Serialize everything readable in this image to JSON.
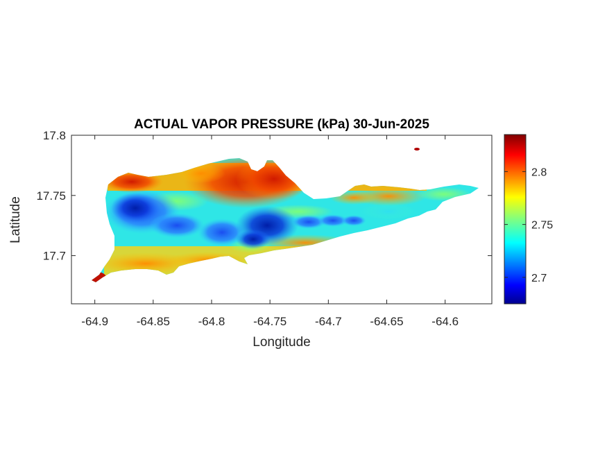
{
  "title": "ACTUAL VAPOR PRESSURE (kPa) 30-Jun-2025",
  "chart_data": {
    "type": "heatmap",
    "title": "ACTUAL VAPOR PRESSURE (kPa) 30-Jun-2025",
    "xlabel": "Longitude",
    "ylabel": "Latitude",
    "xlim": [
      -64.92,
      -64.56
    ],
    "ylim": [
      17.66,
      17.8
    ],
    "x_ticks": [
      "-64.9",
      "-64.85",
      "-64.8",
      "-64.75",
      "-64.7",
      "-64.65",
      "-64.6"
    ],
    "y_ticks": [
      "17.7",
      "17.75",
      "17.8"
    ],
    "x_tick_values": [
      -64.9,
      -64.85,
      -64.8,
      -64.75,
      -64.7,
      -64.65,
      -64.6
    ],
    "y_tick_values": [
      17.7,
      17.75,
      17.8
    ],
    "colormap": "jet",
    "clim": [
      2.675,
      2.835
    ],
    "colorbar_ticks": [
      "2.7",
      "2.75",
      "2.8"
    ],
    "colorbar_tick_values": [
      2.7,
      2.75,
      2.8
    ],
    "value_pattern": [
      {
        "region": "north-central hills",
        "approx_value": 2.82
      },
      {
        "region": "far west inland",
        "approx_value": 2.71
      },
      {
        "region": "center near -64.75, 17.725",
        "approx_value": 2.68
      },
      {
        "region": "southern coast",
        "approx_value": 2.79
      },
      {
        "region": "eastern tip",
        "approx_value": 2.75
      },
      {
        "region": "southwest point",
        "approx_value": 2.83
      }
    ],
    "grid": false
  }
}
